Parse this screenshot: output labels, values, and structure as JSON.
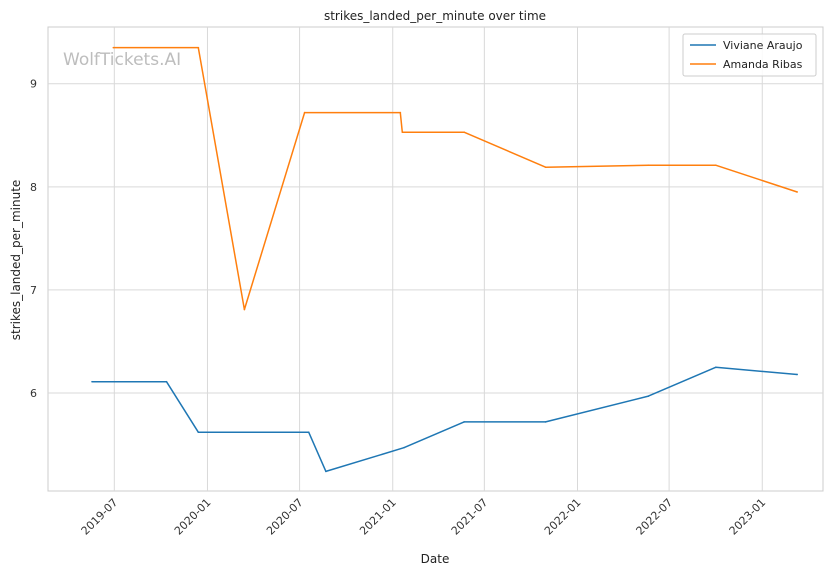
{
  "chart_data": {
    "type": "line",
    "title": "strikes_landed_per_minute over time",
    "xlabel": "Date",
    "ylabel": "strikes_landed_per_minute",
    "watermark": "WolfTickets.AI",
    "x_ticks": [
      "2019-07",
      "2020-01",
      "2020-07",
      "2021-01",
      "2021-07",
      "2022-01",
      "2022-07",
      "2023-01"
    ],
    "y_ticks": [
      6,
      7,
      8,
      9
    ],
    "xlim": [
      "2019-02-20",
      "2023-05-01"
    ],
    "ylim": [
      5.05,
      9.55
    ],
    "grid": true,
    "legend_position": "top-right",
    "series": [
      {
        "name": "Viviane Araujo",
        "color": "#1f77b4",
        "points": [
          {
            "x": "2019-05-18",
            "y": 6.11
          },
          {
            "x": "2019-10-12",
            "y": 6.11
          },
          {
            "x": "2019-12-14",
            "y": 5.62
          },
          {
            "x": "2020-07-19",
            "y": 5.62
          },
          {
            "x": "2020-08-22",
            "y": 5.24
          },
          {
            "x": "2021-01-23",
            "y": 5.47
          },
          {
            "x": "2021-05-22",
            "y": 5.72
          },
          {
            "x": "2021-10-30",
            "y": 5.72
          },
          {
            "x": "2022-05-21",
            "y": 5.97
          },
          {
            "x": "2022-10-01",
            "y": 6.25
          },
          {
            "x": "2023-03-11",
            "y": 6.18
          }
        ]
      },
      {
        "name": "Amanda Ribas",
        "color": "#ff7f0e",
        "points": [
          {
            "x": "2019-06-29",
            "y": 9.35
          },
          {
            "x": "2019-12-14",
            "y": 9.35
          },
          {
            "x": "2020-03-14",
            "y": 6.81
          },
          {
            "x": "2020-07-11",
            "y": 8.72
          },
          {
            "x": "2021-01-16",
            "y": 8.72
          },
          {
            "x": "2021-01-20",
            "y": 8.53
          },
          {
            "x": "2021-05-22",
            "y": 8.53
          },
          {
            "x": "2021-10-30",
            "y": 8.19
          },
          {
            "x": "2022-05-21",
            "y": 8.21
          },
          {
            "x": "2022-10-01",
            "y": 8.21
          },
          {
            "x": "2023-03-11",
            "y": 7.95
          }
        ]
      }
    ]
  }
}
